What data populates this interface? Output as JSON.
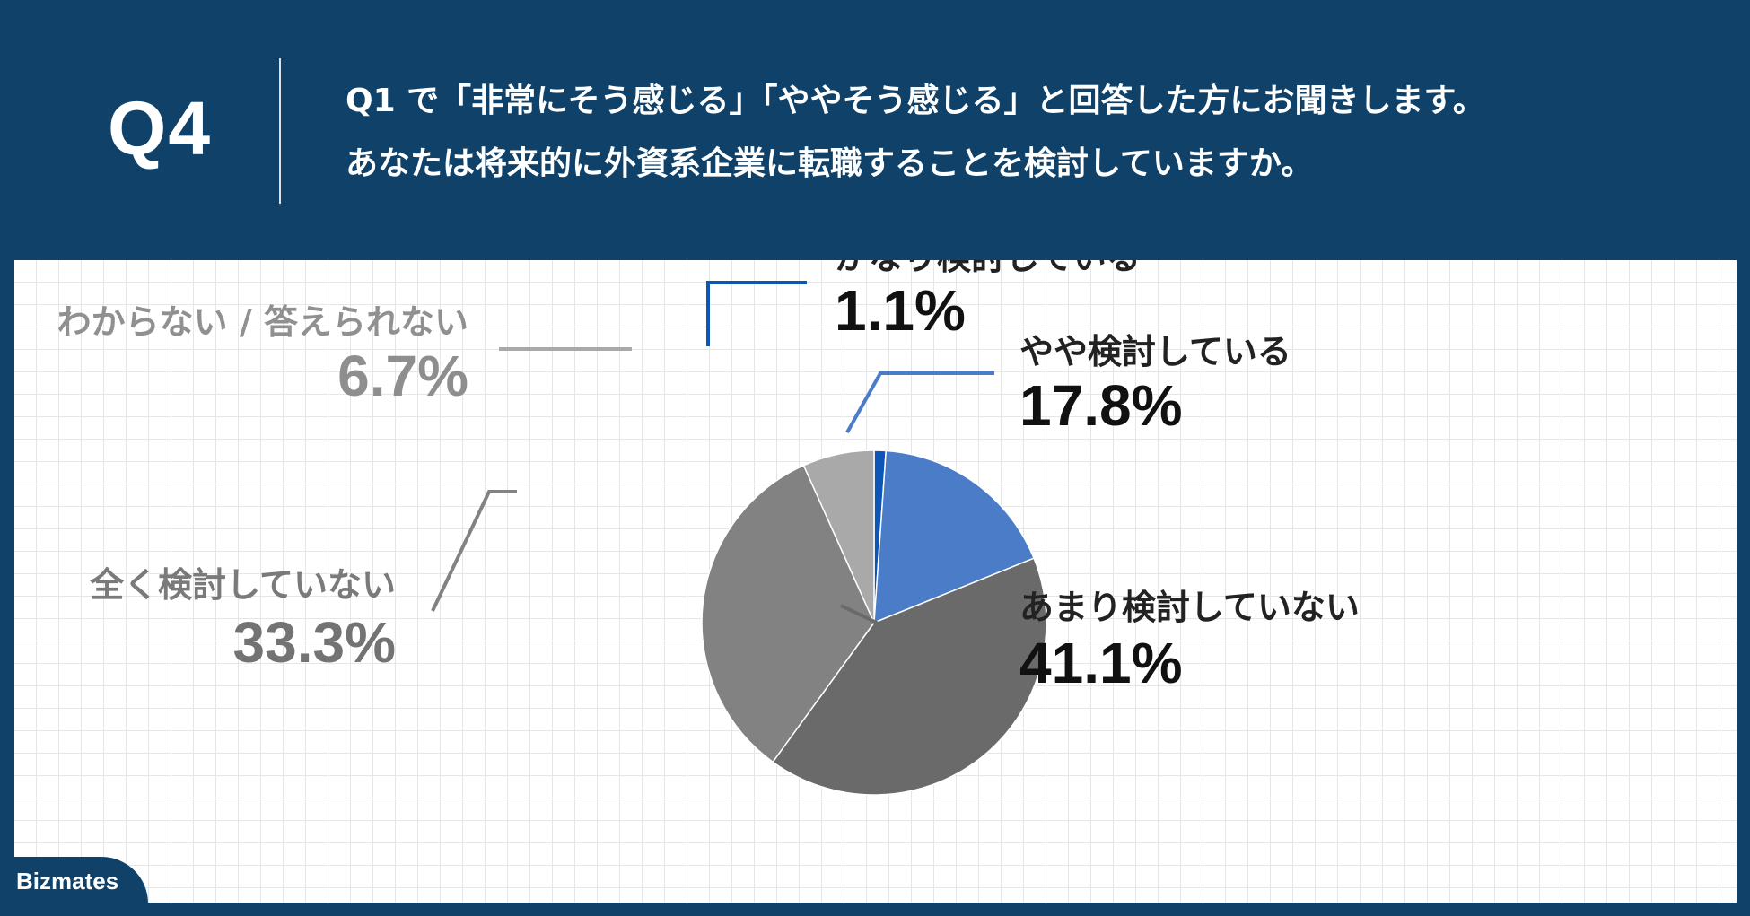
{
  "header": {
    "qnum": "Q4",
    "line1": "Q1 で「非常にそう感じる」「ややそう感じる」と回答した方にお聞きします。",
    "line2": "あなたは将来的に外資系企業に転職することを検討していますか。"
  },
  "brand": {
    "name": "Bizmates"
  },
  "colors": {
    "header_bg": "#0f4169",
    "blue": "#4a7cc8",
    "blue_dark": "#0d56b8",
    "gray_light": "#a9a9a9",
    "gray_mid": "#828282",
    "gray_dark": "#6a6a6a"
  },
  "chart_data": {
    "type": "pie",
    "start": "12 o'clock, clockwise",
    "slices": [
      {
        "label": "かなり検討している",
        "value": 1.1,
        "value_label": "1.1%",
        "color": "#0d56b8"
      },
      {
        "label": "やや検討している",
        "value": 17.8,
        "value_label": "17.8%",
        "color": "#4a7cc8"
      },
      {
        "label": "あまり検討していない",
        "value": 41.1,
        "value_label": "41.1%",
        "color": "#6a6a6a"
      },
      {
        "label": "全く検討していない",
        "value": 33.3,
        "value_label": "33.3%",
        "color": "#828282"
      },
      {
        "label": "わからない / 答えられない",
        "value": 6.7,
        "value_label": "6.7%",
        "color": "#a9a9a9"
      }
    ]
  }
}
